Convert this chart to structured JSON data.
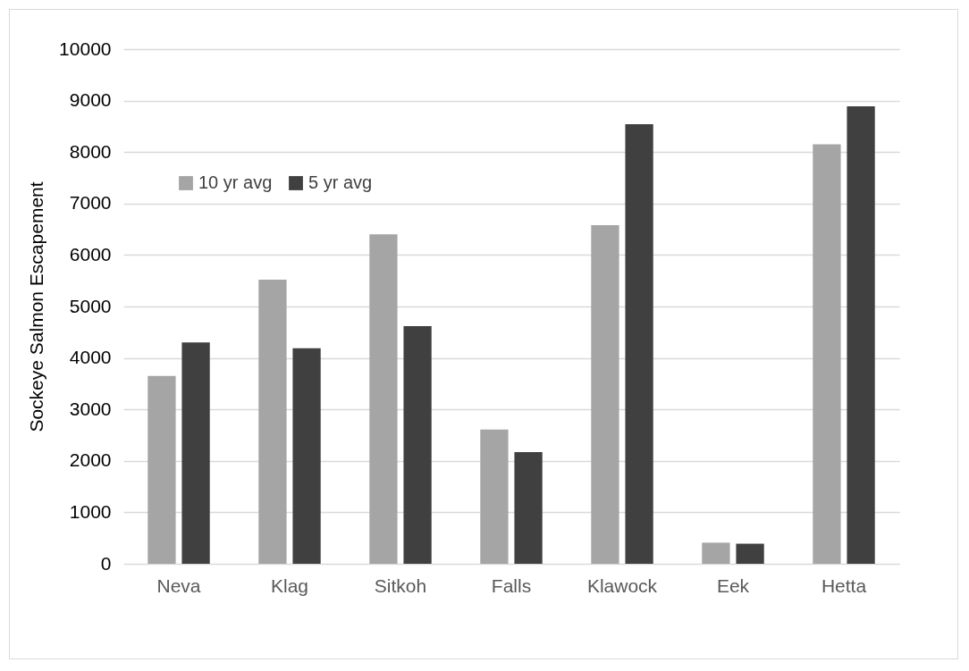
{
  "chart_data": {
    "type": "bar",
    "ylabel": "Sockeye Salmon Escapement",
    "categories": [
      "Neva",
      "Klag",
      "Sitkoh",
      "Falls",
      "Klawock",
      "Eek",
      "Hetta"
    ],
    "series": [
      {
        "name": "10 yr avg",
        "color": "#a5a5a5",
        "values": [
          3650,
          5520,
          6400,
          2610,
          6580,
          410,
          8150
        ]
      },
      {
        "name": "5 yr avg",
        "color": "#404040",
        "values": [
          4300,
          4190,
          4620,
          2170,
          8540,
          390,
          8890
        ]
      }
    ],
    "ylim": [
      0,
      10000
    ],
    "yticks": [
      0,
      1000,
      2000,
      3000,
      4000,
      5000,
      6000,
      7000,
      8000,
      9000,
      10000
    ],
    "grid": "y",
    "legend": "top left"
  }
}
